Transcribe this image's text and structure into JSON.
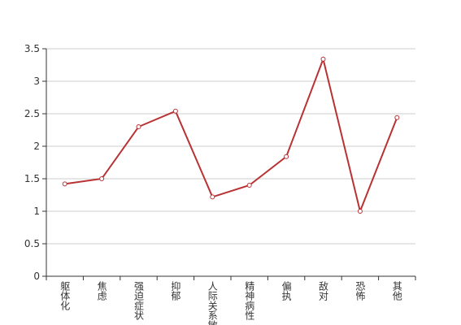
{
  "chart_data": {
    "type": "line",
    "categories": [
      "躯体化",
      "焦虑",
      "强迫症状",
      "抑郁",
      "人际关系敏感",
      "精神病性",
      "偏执",
      "敌对",
      "恐怖",
      "其他"
    ],
    "series": [
      {
        "color": "#b83234",
        "values": [
          1.42,
          1.5,
          2.3,
          2.54,
          1.22,
          1.4,
          1.84,
          3.34,
          1.0,
          2.44
        ]
      }
    ],
    "ylim": [
      0,
      3.5
    ],
    "yticks": [
      0,
      0.5,
      1,
      1.5,
      2,
      2.5,
      3,
      3.5
    ],
    "grid": true
  }
}
